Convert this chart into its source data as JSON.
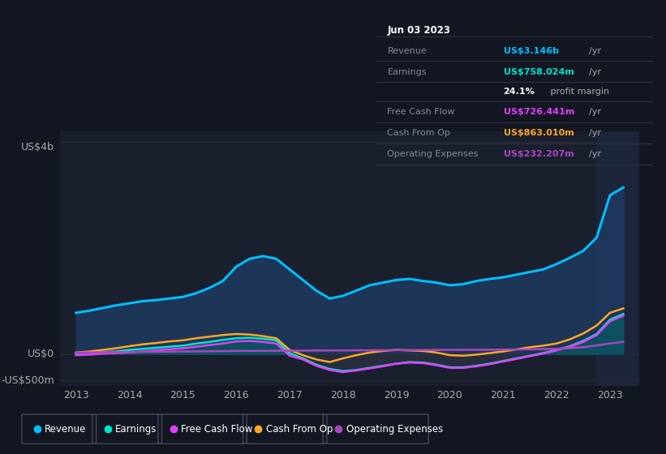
{
  "bg_color": "#131722",
  "plot_bg_color": "#1a1f2e",
  "grid_color": "#2a2f3e",
  "ylabel_top": "US$4b",
  "ylabel_zero": "US$0",
  "ylabel_neg": "-US$500m",
  "ylim": [
    -600,
    4200
  ],
  "revenue_color": "#00bfff",
  "earnings_color": "#00e5cc",
  "fcf_color": "#e040fb",
  "cashop_color": "#ffa726",
  "opex_color": "#ab47bc",
  "revenue_fill": "#1e3a5f",
  "earnings_fill_pos": "#005555",
  "legend_items": [
    "Revenue",
    "Earnings",
    "Free Cash Flow",
    "Cash From Op",
    "Operating Expenses"
  ],
  "legend_colors": [
    "#00bfff",
    "#00e5cc",
    "#e040fb",
    "#ffa726",
    "#ab47bc"
  ],
  "tooltip": {
    "date": "Jun 03 2023",
    "rows": [
      {
        "label": "Revenue",
        "value": "US$3.146b",
        "unit": "/yr",
        "color": "#00bfff"
      },
      {
        "label": "Earnings",
        "value": "US$758.024m",
        "unit": "/yr",
        "color": "#00e5cc"
      },
      {
        "label": "",
        "value": "24.1%",
        "unit": " profit margin",
        "color": "#ffffff"
      },
      {
        "label": "Free Cash Flow",
        "value": "US$726.441m",
        "unit": "/yr",
        "color": "#e040fb"
      },
      {
        "label": "Cash From Op",
        "value": "US$863.010m",
        "unit": "/yr",
        "color": "#ffa726"
      },
      {
        "label": "Operating Expenses",
        "value": "US$232.207m",
        "unit": "/yr",
        "color": "#ab47bc"
      }
    ]
  },
  "revenue_x": [
    2013.0,
    2013.25,
    2013.5,
    2013.75,
    2014.0,
    2014.25,
    2014.5,
    2014.75,
    2015.0,
    2015.25,
    2015.5,
    2015.75,
    2016.0,
    2016.25,
    2016.5,
    2016.75,
    2017.0,
    2017.25,
    2017.5,
    2017.75,
    2018.0,
    2018.25,
    2018.5,
    2018.75,
    2019.0,
    2019.25,
    2019.5,
    2019.75,
    2020.0,
    2020.25,
    2020.5,
    2020.75,
    2021.0,
    2021.25,
    2021.5,
    2021.75,
    2022.0,
    2022.25,
    2022.5,
    2022.75,
    2023.0,
    2023.25
  ],
  "revenue_y": [
    780,
    820,
    870,
    920,
    960,
    1000,
    1020,
    1050,
    1080,
    1150,
    1250,
    1380,
    1650,
    1800,
    1850,
    1800,
    1600,
    1400,
    1200,
    1050,
    1100,
    1200,
    1300,
    1350,
    1400,
    1420,
    1380,
    1350,
    1300,
    1320,
    1380,
    1420,
    1450,
    1500,
    1550,
    1600,
    1700,
    1820,
    1950,
    2200,
    3000,
    3146
  ],
  "earnings_x": [
    2013.0,
    2013.25,
    2013.5,
    2013.75,
    2014.0,
    2014.25,
    2014.5,
    2014.75,
    2015.0,
    2015.25,
    2015.5,
    2015.75,
    2016.0,
    2016.25,
    2016.5,
    2016.75,
    2017.0,
    2017.25,
    2017.5,
    2017.75,
    2018.0,
    2018.25,
    2018.5,
    2018.75,
    2019.0,
    2019.25,
    2019.5,
    2019.75,
    2020.0,
    2020.25,
    2020.5,
    2020.75,
    2021.0,
    2021.25,
    2021.5,
    2021.75,
    2022.0,
    2022.25,
    2022.5,
    2022.75,
    2023.0,
    2023.25
  ],
  "earnings_y": [
    20,
    30,
    40,
    50,
    80,
    100,
    120,
    140,
    160,
    200,
    230,
    270,
    300,
    310,
    290,
    260,
    20,
    -80,
    -200,
    -280,
    -320,
    -300,
    -260,
    -220,
    -180,
    -150,
    -160,
    -200,
    -250,
    -250,
    -220,
    -180,
    -130,
    -80,
    -30,
    20,
    80,
    150,
    250,
    380,
    650,
    758
  ],
  "fcf_x": [
    2013.0,
    2013.25,
    2013.5,
    2013.75,
    2014.0,
    2014.25,
    2014.5,
    2014.75,
    2015.0,
    2015.25,
    2015.5,
    2015.75,
    2016.0,
    2016.25,
    2016.5,
    2016.75,
    2017.0,
    2017.25,
    2017.5,
    2017.75,
    2018.0,
    2018.25,
    2018.5,
    2018.75,
    2019.0,
    2019.25,
    2019.5,
    2019.75,
    2020.0,
    2020.25,
    2020.5,
    2020.75,
    2021.0,
    2021.25,
    2021.5,
    2021.75,
    2022.0,
    2022.25,
    2022.5,
    2022.75,
    2023.0,
    2023.25
  ],
  "fcf_y": [
    -20,
    -10,
    10,
    20,
    30,
    50,
    70,
    90,
    110,
    140,
    170,
    200,
    240,
    250,
    230,
    200,
    -30,
    -100,
    -220,
    -300,
    -340,
    -310,
    -270,
    -230,
    -180,
    -160,
    -170,
    -210,
    -260,
    -260,
    -230,
    -190,
    -140,
    -90,
    -40,
    10,
    70,
    140,
    230,
    360,
    620,
    726
  ],
  "cashop_x": [
    2013.0,
    2013.25,
    2013.5,
    2013.75,
    2014.0,
    2014.25,
    2014.5,
    2014.75,
    2015.0,
    2015.25,
    2015.5,
    2015.75,
    2016.0,
    2016.25,
    2016.5,
    2016.75,
    2017.0,
    2017.25,
    2017.5,
    2017.75,
    2018.0,
    2018.25,
    2018.5,
    2018.75,
    2019.0,
    2019.25,
    2019.5,
    2019.75,
    2020.0,
    2020.25,
    2020.5,
    2020.75,
    2021.0,
    2021.25,
    2021.5,
    2021.75,
    2022.0,
    2022.25,
    2022.5,
    2022.75,
    2023.0,
    2023.25
  ],
  "cashop_y": [
    30,
    50,
    80,
    110,
    150,
    185,
    210,
    240,
    260,
    300,
    330,
    360,
    380,
    370,
    340,
    300,
    80,
    -20,
    -100,
    -150,
    -80,
    -20,
    30,
    60,
    80,
    70,
    60,
    30,
    -20,
    -30,
    -10,
    20,
    50,
    90,
    130,
    160,
    200,
    280,
    390,
    540,
    780,
    863
  ],
  "opex_x": [
    2013.0,
    2013.5,
    2014.0,
    2014.5,
    2015.0,
    2015.5,
    2016.0,
    2016.5,
    2017.0,
    2017.5,
    2018.0,
    2018.5,
    2019.0,
    2019.5,
    2020.0,
    2020.5,
    2021.0,
    2021.5,
    2022.0,
    2022.5,
    2023.0,
    2023.25
  ],
  "opex_y": [
    30,
    35,
    40,
    45,
    50,
    55,
    60,
    62,
    65,
    68,
    70,
    72,
    75,
    78,
    80,
    82,
    85,
    90,
    100,
    130,
    200,
    232
  ]
}
